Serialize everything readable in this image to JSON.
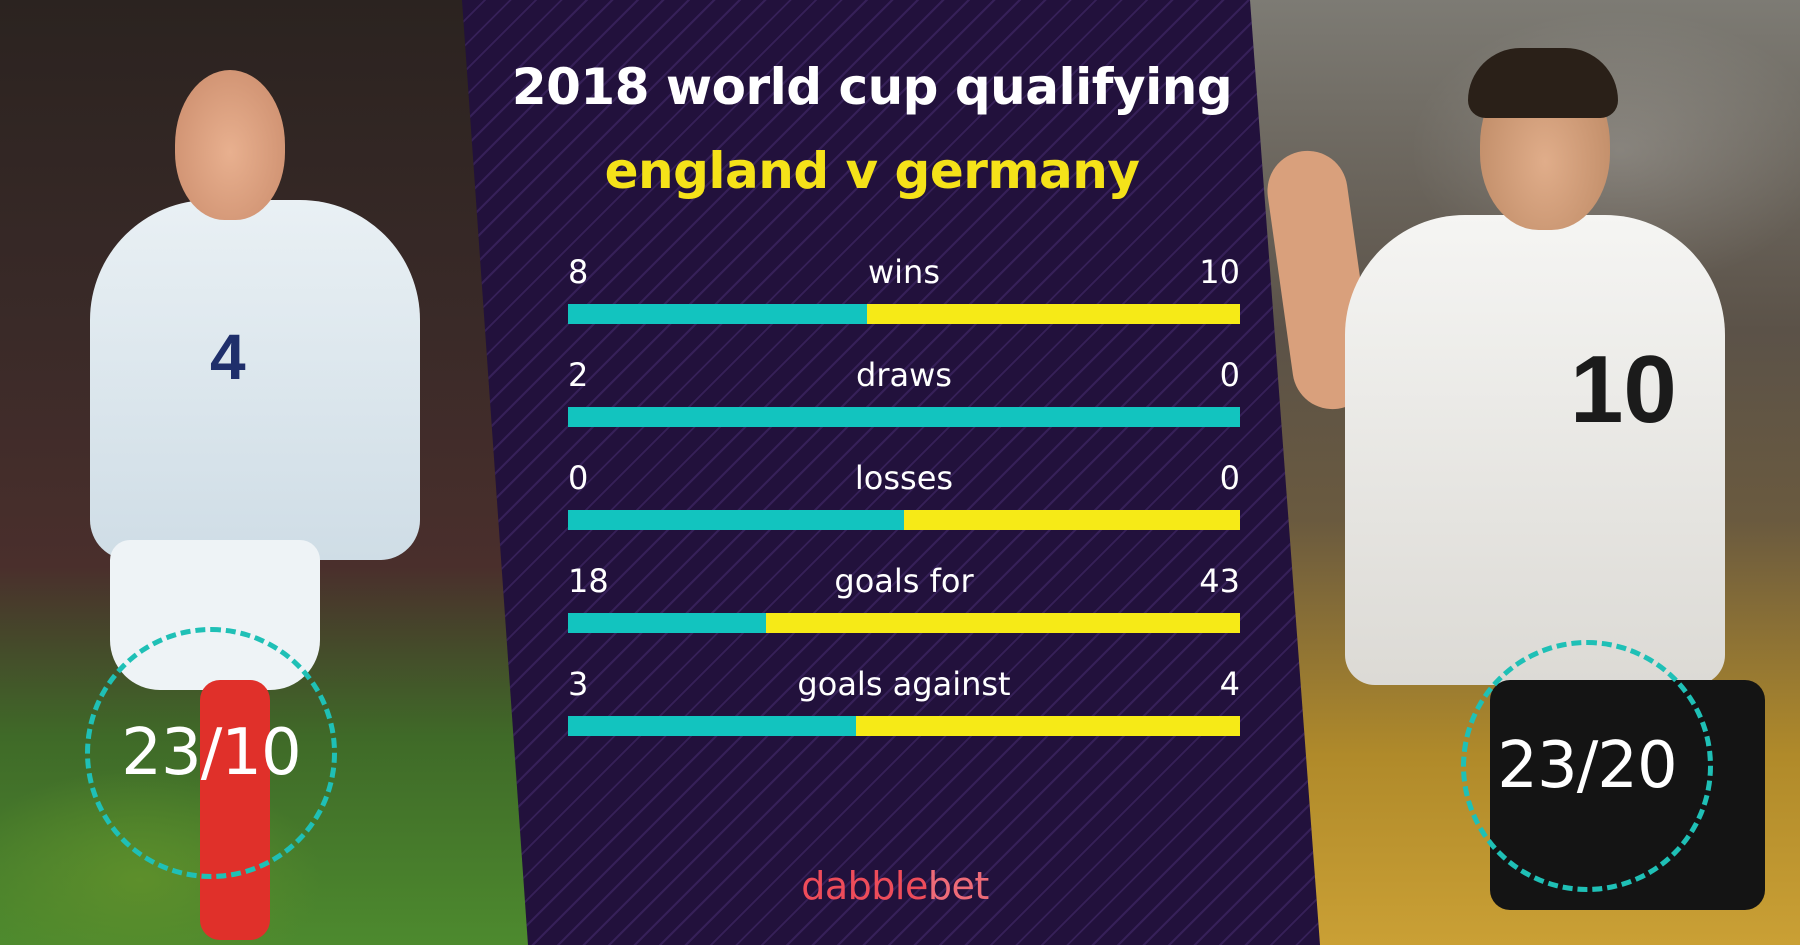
{
  "title": "2018 world cup qualifying",
  "subtitle": "england v germany",
  "brand": {
    "part1": "dabble",
    "part2": "bet"
  },
  "colors": {
    "england": "#12c4bf",
    "germany": "#f6ea17",
    "title": "#ffffff",
    "subtitle": "#f5e219",
    "panel": "#22113c"
  },
  "odds": {
    "england": "23/10",
    "germany": "23/20"
  },
  "player_numbers": {
    "england": "4",
    "germany": "10"
  },
  "chart_data": {
    "type": "bar",
    "orientation": "horizontal-stacked-comparison",
    "categories": [
      "wins",
      "draws",
      "losses",
      "goals for",
      "goals against"
    ],
    "series": [
      {
        "values": [
          8,
          2,
          0,
          18,
          3
        ]
      },
      {
        "values": [
          10,
          0,
          0,
          43,
          4
        ]
      }
    ],
    "grid": false
  }
}
